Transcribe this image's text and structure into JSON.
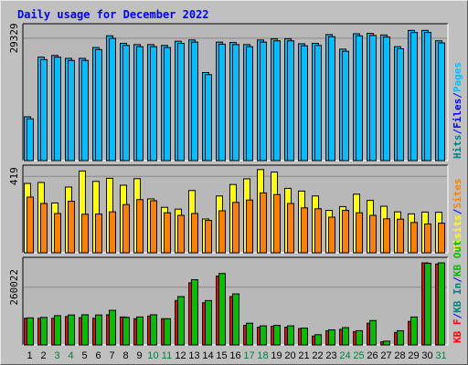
{
  "chart_data": {
    "type": "bar",
    "title": "Daily usage for December 2022",
    "categories": [
      "1",
      "2",
      "3",
      "4",
      "5",
      "6",
      "7",
      "8",
      "9",
      "10",
      "11",
      "12",
      "13",
      "14",
      "15",
      "16",
      "17",
      "18",
      "19",
      "20",
      "21",
      "22",
      "23",
      "24",
      "25",
      "26",
      "27",
      "28",
      "29",
      "30",
      "31"
    ],
    "weekend_categories": [
      "3",
      "4",
      "10",
      "11",
      "17",
      "18",
      "24",
      "25",
      "31"
    ],
    "colors": {
      "background": "#c0c0c0",
      "plot": "#b8b8b8",
      "title": "#0000ff",
      "weekday_label": "#000000",
      "weekend_label": "#008040",
      "hits": "#008080",
      "files": "#0000ff",
      "pages": "#00c0ff",
      "visits": "#ffff00",
      "sites": "#ff8000",
      "kb_in": "#00c000",
      "kb_out": "#00c000",
      "kb_f": "#ff0000"
    },
    "panels": [
      {
        "id": "hits-files-pages",
        "ytick": "29329",
        "ytick_value": 29329,
        "ymax": 32800,
        "legend": [
          {
            "text": "Hits",
            "color": "#008080"
          },
          {
            "text": "/",
            "color": "#0000ff"
          },
          {
            "text": "Files",
            "color": "#0000ff"
          },
          {
            "text": "/",
            "color": "#0000ff"
          },
          {
            "text": "Pages",
            "color": "#00c0ff"
          }
        ],
        "series": [
          {
            "name": "Hits",
            "color": "#00bfff",
            "values": [
              10500,
              24800,
              25200,
              24500,
              24500,
              27100,
              29900,
              28100,
              27800,
              27800,
              27600,
              28600,
              28900,
              21100,
              28400,
              28300,
              27800,
              28900,
              29200,
              29200,
              28000,
              28100,
              30200,
              26700,
              30400,
              30500,
              30100,
              27300,
              31200,
              31200,
              28700
            ]
          },
          {
            "name": "Files",
            "color": "#00bfff",
            "values": [
              10000,
              24200,
              24800,
              24000,
              24000,
              26600,
              29300,
              27600,
              27300,
              27300,
              27100,
              28100,
              28400,
              20600,
              27900,
              27800,
              27300,
              28400,
              28700,
              28700,
              27500,
              27600,
              29700,
              26200,
              29900,
              30000,
              29600,
              26800,
              30700,
              30700,
              28200
            ]
          }
        ]
      },
      {
        "id": "visits-sites",
        "ytick": "419",
        "ytick_value": 419,
        "ymax": 480,
        "legend": [
          {
            "text": "Visits",
            "color": "#ffff00"
          },
          {
            "text": "/",
            "color": "#0000ff"
          },
          {
            "text": "Sites",
            "color": "#ff8000"
          }
        ],
        "series": [
          {
            "name": "Visits",
            "color": "#ffff00",
            "values": [
              380,
              385,
              273,
              360,
              448,
              391,
              408,
              370,
              406,
              295,
              249,
              239,
              341,
              185,
              311,
              374,
              405,
              456,
              442,
              353,
              338,
              311,
              232,
              253,
              321,
              287,
              255,
              224,
              213,
              223,
              222
            ]
          },
          {
            "name": "Sites",
            "color": "#ff8000",
            "values": [
              305,
              270,
              215,
              282,
              211,
              212,
              224,
              264,
              291,
              285,
              219,
              205,
              215,
              177,
              230,
              276,
              289,
              328,
              319,
              270,
              246,
              241,
              195,
              232,
              219,
              205,
              186,
              184,
              166,
              158,
              162
            ]
          }
        ]
      },
      {
        "id": "kbytes",
        "ytick": "260022",
        "ytick_value": 260022,
        "ymax": 395000,
        "legend": [
          {
            "text": "KB F",
            "color": "#ff0000"
          },
          {
            "text": "/",
            "color": "#0000ff"
          },
          {
            "text": "KB In",
            "color": "#008080"
          },
          {
            "text": "/",
            "color": "#0000ff"
          },
          {
            "text": "KB Out",
            "color": "#00c000"
          }
        ],
        "series": [
          {
            "name": "KB F",
            "color": "#ff0000",
            "values": [
              120000,
              120000,
              120000,
              128000,
              123000,
              120000,
              136000,
              126000,
              118000,
              130000,
              118000,
              200000,
              280000,
              190000,
              310000,
              218000,
              88000,
              80000,
              84000,
              80000,
              74000,
              40000,
              64000,
              70000,
              60000,
              98000,
              14000,
              56000,
              106000,
              370000,
              365000
            ]
          },
          {
            "name": "KB Out",
            "color": "#00c000",
            "values": [
              122000,
              124000,
              132000,
              135000,
              136000,
              135000,
              156000,
              124000,
              126000,
              136000,
              118000,
              218000,
              294000,
              200000,
              322000,
              230000,
              98000,
              86000,
              88000,
              86000,
              76000,
              46000,
              68000,
              78000,
              64000,
              110000,
              17000,
              64000,
              126000,
              368000,
              370000
            ]
          }
        ]
      }
    ]
  }
}
